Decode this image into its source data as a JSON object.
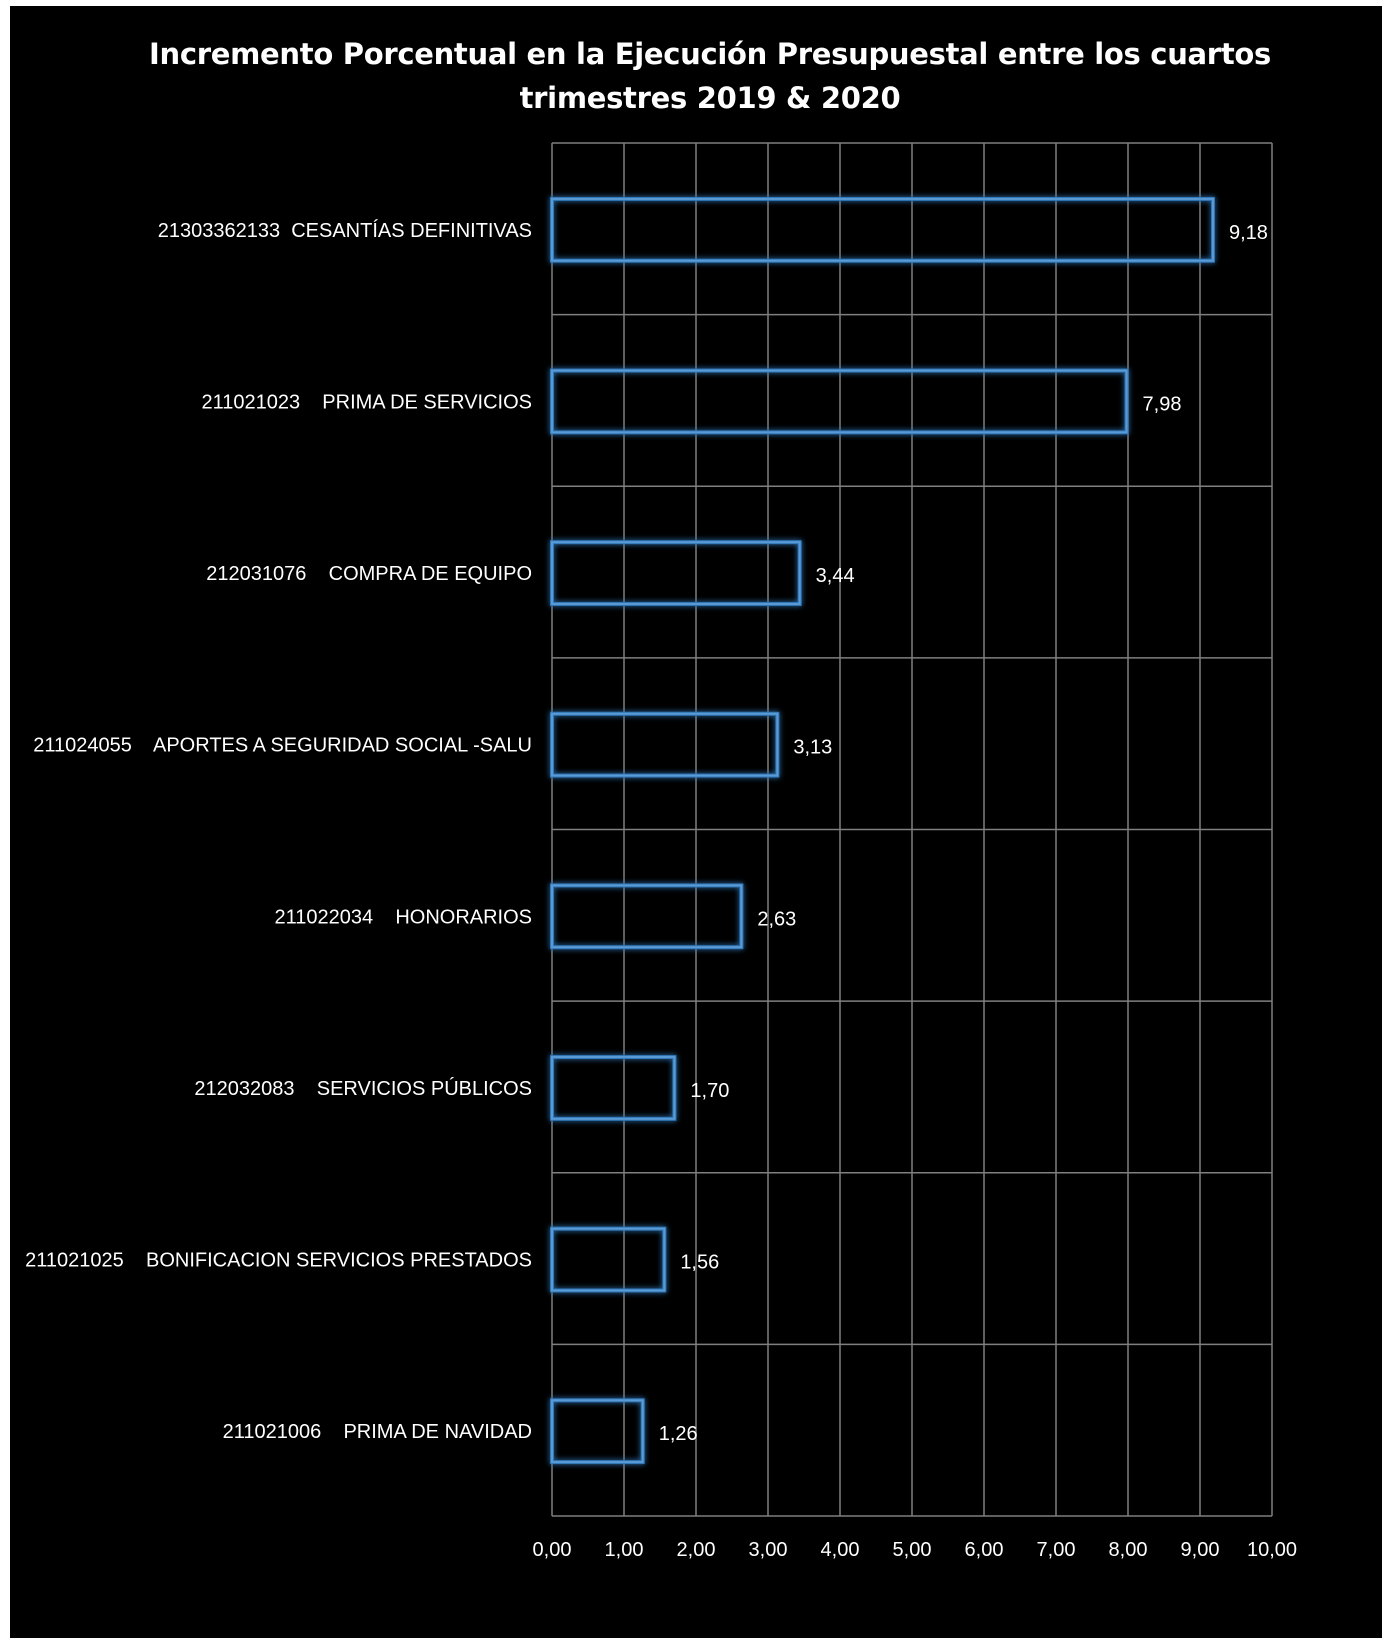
{
  "chart_data": {
    "type": "bar",
    "orientation": "horizontal",
    "title": "Incremento Porcentual en la Ejecución Presupuestal entre los cuartos\ntrimestres  2019 & 2020",
    "categories": [
      "21303362133  CESANTÍAS DEFINITIVAS",
      "211021023    PRIMA DE SERVICIOS",
      "212031076    COMPRA DE EQUIPO",
      "211024055    APORTES A SEGURIDAD SOCIAL -SALU",
      "211022034    HONORARIOS",
      "212032083    SERVICIOS PÚBLICOS",
      "211021025    BONIFICACION SERVICIOS PRESTADOS",
      "211021006    PRIMA DE NAVIDAD"
    ],
    "values": [
      9.18,
      7.98,
      3.44,
      3.13,
      2.63,
      1.7,
      1.56,
      1.26
    ],
    "value_labels": [
      "9,18",
      "7,98",
      "3,44",
      "3,13",
      "2,63",
      "1,70",
      "1,56",
      "1,26"
    ],
    "xlim": [
      0,
      10
    ],
    "ticks": [
      "0,00",
      "1,00",
      "2,00",
      "3,00",
      "4,00",
      "5,00",
      "6,00",
      "7,00",
      "8,00",
      "9,00",
      "10,00"
    ],
    "xlabel": "",
    "ylabel": "",
    "grid": true,
    "legend": "none",
    "colors": {
      "background": "#000000",
      "bar_outline": "#5b9bd5",
      "bar_glow": "#2e75b6",
      "grid": "#7f7f7f",
      "text": "#ffffff"
    }
  }
}
